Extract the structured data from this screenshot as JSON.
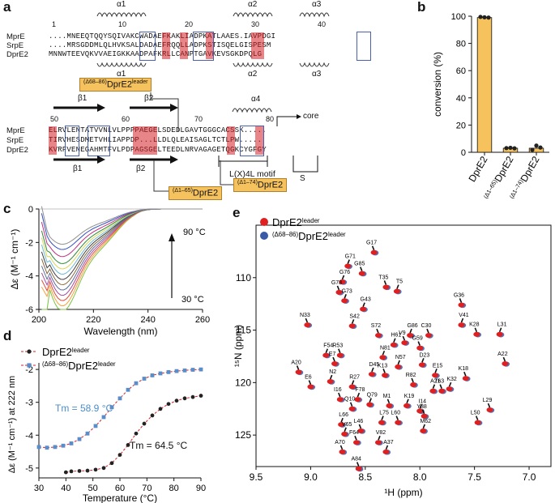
{
  "panels": {
    "a": "a",
    "b": "b",
    "c": "c",
    "d": "d",
    "e": "e"
  },
  "panel_a": {
    "ruler_top": [
      "1",
      "10",
      "20",
      "30",
      "40"
    ],
    "helices_top": [
      "α1",
      "α2",
      "α3"
    ],
    "helices_mid": [
      "α1",
      "α2",
      "α3"
    ],
    "rows_top": [
      {
        "name": "MprE",
        "seq": "....MNEEQTQQYSQIVAKCWADAEFKAKLIADPKATLAAES.IAVPDGI"
      },
      {
        "name": "SrpE",
        "seq": "....MRSGDDMLQLHVKSALDADAEFRQQLLADPKSTISQELGISPESM"
      },
      {
        "name": "DprE2",
        "seq": "MNNWTEEVQKVVAEIGKKAADPAFKRLLCANPTGAVKEVSGKDPQLG"
      }
    ],
    "ruler_bottom": [
      "50",
      "60",
      "70",
      "80"
    ],
    "alpha4": "α4",
    "core_label": "core",
    "rows_bottom": [
      {
        "name": "MprE",
        "seq": "ELRVLENTATVVNLVLPPPPAEGELSDEDLGAVTGGGCACSSK....."
      },
      {
        "name": "SrpE",
        "seq": "TIRVHESDMETVHLIAPPDP...LLDLQLEAISAGLTCTLPW....."
      },
      {
        "name": "DprE2",
        "seq": "KVRFVENEGAHMTFVLPDPAGSGELTEEDLNRVAGAGETQGKCYGFGY"
      }
    ],
    "beta_top": [
      "β1",
      "β2"
    ],
    "beta_bottom": [
      "β1",
      "β2"
    ],
    "motif": "L(X)4L motif",
    "bridge": "S",
    "tag_leader_sup": "(Δ68–86)",
    "tag_leader_main": "DprE2",
    "tag_leader_suffix": "leader",
    "tag_d65_sup": "(Δ1–65)",
    "tag_d65_main": "DprE2",
    "tag_d74_sup": "(Δ1–74)",
    "tag_d74_main": "DprE2"
  },
  "chart_data": [
    {
      "panel": "b",
      "type": "bar",
      "ylabel": "conversion (%)",
      "yticks": [
        "0",
        "20",
        "40",
        "60",
        "80",
        "100"
      ],
      "ylim": [
        0,
        100
      ],
      "categories": [
        "DprE2",
        "(Δ1–65)DprE2",
        "(Δ1–74)DprE2"
      ],
      "cat_sup": [
        "",
        "(Δ1–65)",
        "(Δ1–74)"
      ],
      "cat_main": [
        "DprE2",
        "DprE2",
        "DprE2"
      ],
      "values": [
        99,
        3,
        3
      ],
      "replicates": [
        [
          99.5,
          99.2,
          99.0
        ],
        [
          3.1,
          3.3,
          2.9
        ],
        [
          1.8,
          4.9,
          3.5
        ]
      ],
      "color": "#f6c25e"
    },
    {
      "panel": "c",
      "type": "line",
      "xlabel": "Wavelength (nm)",
      "ylabel": "Δε (M⁻¹ cm⁻¹)",
      "xlim": [
        200,
        260
      ],
      "ylim": [
        -6,
        0
      ],
      "xticks": [
        "200",
        "220",
        "240",
        "260"
      ],
      "yticks": [
        "0",
        "-2",
        "-4",
        "-6"
      ],
      "annotation_hot": "90 °C",
      "annotation_cold": "30 °C",
      "temperatures": [
        30,
        35,
        40,
        45,
        50,
        55,
        60,
        65,
        70,
        75,
        80,
        85,
        90
      ],
      "colors": [
        "#7cc242",
        "#f6a13c",
        "#e24a3b",
        "#a84ba0",
        "#5b6d9e",
        "#8a6a3e",
        "#404040",
        "#6bb8d9",
        "#d8d856",
        "#2f8a3a",
        "#c03080",
        "#3050c0",
        "#909090"
      ],
      "min_at_208": [
        -5.8,
        -5.5,
        -5.2,
        -4.9,
        -4.6,
        -4.3,
        -4.0,
        -3.7,
        -3.4,
        -3.1,
        -2.7,
        -2.3,
        -2.0
      ]
    },
    {
      "panel": "d",
      "type": "line",
      "xlabel": "Temperature (°C)",
      "ylabel": "Δε (M⁻¹ cm⁻¹) at 222 nm",
      "xlim": [
        30,
        90
      ],
      "ylim": [
        -5.3,
        -1.8
      ],
      "xticks": [
        "30",
        "40",
        "50",
        "60",
        "70",
        "80",
        "90"
      ],
      "yticks": [
        "-2",
        "-3",
        "-4",
        "-5"
      ],
      "series": [
        {
          "name": "DprE2leader",
          "label_main": "DprE2",
          "label_sup": "leader",
          "label_pre": "",
          "color": "#222222",
          "x": [
            40,
            42,
            45,
            48,
            51,
            54,
            57,
            60,
            63,
            66,
            69,
            72,
            75,
            78,
            81,
            84,
            87,
            90
          ],
          "y": [
            -5.13,
            -5.1,
            -5.09,
            -5.08,
            -5.05,
            -5.0,
            -4.85,
            -4.6,
            -4.3,
            -3.95,
            -3.65,
            -3.4,
            -3.2,
            -3.05,
            -2.95,
            -2.88,
            -2.84,
            -2.8
          ]
        },
        {
          "name": "(Δ68–86)DprE2leader",
          "label_main": "DprE2",
          "label_sup": "leader",
          "label_pre": "(Δ68–86)",
          "color": "#5b8ec9",
          "x": [
            30,
            33,
            36,
            39,
            42,
            45,
            48,
            51,
            54,
            57,
            60,
            63,
            66,
            69,
            72,
            75,
            78,
            81,
            84,
            87,
            90
          ],
          "y": [
            -4.36,
            -4.38,
            -4.36,
            -4.32,
            -4.25,
            -4.12,
            -3.95,
            -3.72,
            -3.45,
            -3.15,
            -2.88,
            -2.62,
            -2.42,
            -2.28,
            -2.18,
            -2.12,
            -2.08,
            -2.05,
            -2.03,
            -2.01,
            -2.0
          ]
        }
      ],
      "tm_blue": "Tm = 58.9 °C",
      "tm_black": "Tm = 64.5 °C"
    },
    {
      "panel": "e",
      "type": "scatter",
      "xlabel": "¹H (ppm)",
      "ylabel": "¹⁵N (ppm)",
      "xlim": [
        9.5,
        6.8
      ],
      "ylim": [
        128,
        105
      ],
      "xticks": [
        "9.5",
        "9.0",
        "8.5",
        "8.0",
        "7.5",
        "7.0"
      ],
      "yticks": [
        "110",
        "115",
        "120",
        "125"
      ],
      "legend": [
        {
          "pre": "",
          "main": "DprE2",
          "sup": "leader",
          "color": "#e02020"
        },
        {
          "pre": "(Δ68–86)",
          "main": "DprE2",
          "sup": "leader",
          "color": "#3a5aa8"
        }
      ],
      "peaks": [
        {
          "label": "G17",
          "h": 8.42,
          "n": 107.6
        },
        {
          "label": "G71",
          "h": 8.66,
          "n": 108.9
        },
        {
          "label": "G85",
          "h": 8.53,
          "n": 109.6
        },
        {
          "label": "G76",
          "h": 8.71,
          "n": 110.4
        },
        {
          "label": "T35",
          "h": 8.31,
          "n": 110.9
        },
        {
          "label": "T5",
          "h": 8.21,
          "n": 111.3
        },
        {
          "label": "G78",
          "h": 8.74,
          "n": 111.4
        },
        {
          "label": "G73",
          "h": 8.69,
          "n": 112.2
        },
        {
          "label": "G36",
          "h": 7.62,
          "n": 112.6
        },
        {
          "label": "G43",
          "h": 8.52,
          "n": 113.0
        },
        {
          "label": "N33",
          "h": 9.03,
          "n": 114.5
        },
        {
          "label": "S42",
          "h": 8.62,
          "n": 114.6
        },
        {
          "label": "S72",
          "h": 8.38,
          "n": 115.5
        },
        {
          "label": "G86",
          "h": 8.09,
          "n": 115.5
        },
        {
          "label": "C30",
          "h": 7.92,
          "n": 115.5
        },
        {
          "label": "V41",
          "h": 7.62,
          "n": 114.5
        },
        {
          "label": "K28",
          "h": 7.48,
          "n": 115.4
        },
        {
          "label": "L31",
          "h": 7.27,
          "n": 115.4
        },
        {
          "label": "V9",
          "h": 8.14,
          "n": 116.2
        },
        {
          "label": "H61",
          "h": 8.24,
          "n": 116.4
        },
        {
          "label": "G59",
          "h": 8.0,
          "n": 116.7
        },
        {
          "label": "F54",
          "h": 8.86,
          "n": 117.4
        },
        {
          "label": "R53",
          "h": 8.73,
          "n": 117.4
        },
        {
          "label": "N81",
          "h": 8.34,
          "n": 117.6
        },
        {
          "label": "E7",
          "h": 8.78,
          "n": 118.2
        },
        {
          "label": "D23",
          "h": 7.98,
          "n": 118.3
        },
        {
          "label": "A22",
          "h": 7.22,
          "n": 118.2
        },
        {
          "label": "N57",
          "h": 8.2,
          "n": 118.5
        },
        {
          "label": "A20",
          "h": 9.11,
          "n": 119.0
        },
        {
          "label": "D45",
          "h": 8.44,
          "n": 119.2
        },
        {
          "label": "K13",
          "h": 8.32,
          "n": 119.3
        },
        {
          "label": "E15",
          "h": 7.86,
          "n": 119.3
        },
        {
          "label": "K18",
          "h": 7.58,
          "n": 119.6
        },
        {
          "label": "N2",
          "h": 8.82,
          "n": 119.9
        },
        {
          "label": "E6",
          "h": 9.0,
          "n": 120.4
        },
        {
          "label": "R27",
          "h": 8.62,
          "n": 120.4
        },
        {
          "label": "R82",
          "h": 8.06,
          "n": 120.2
        },
        {
          "label": "A21",
          "h": 7.88,
          "n": 120.8
        },
        {
          "label": "T63",
          "h": 7.8,
          "n": 120.8
        },
        {
          "label": "K32",
          "h": 7.73,
          "n": 120.6
        },
        {
          "label": "I16",
          "h": 8.73,
          "n": 121.6
        },
        {
          "label": "F78",
          "h": 8.57,
          "n": 121.6
        },
        {
          "label": "M1",
          "h": 8.28,
          "n": 122.2
        },
        {
          "label": "K19",
          "h": 8.12,
          "n": 122.2
        },
        {
          "label": "Q10",
          "h": 8.62,
          "n": 122.5
        },
        {
          "label": "Q79",
          "h": 8.46,
          "n": 122.1
        },
        {
          "label": "L29",
          "h": 7.36,
          "n": 122.6
        },
        {
          "label": "I14",
          "h": 8.0,
          "n": 122.7
        },
        {
          "label": "Y38",
          "h": 7.96,
          "n": 123.2
        },
        {
          "label": "L75",
          "h": 8.35,
          "n": 123.8
        },
        {
          "label": "L60",
          "h": 8.2,
          "n": 123.8
        },
        {
          "label": "L66",
          "h": 8.72,
          "n": 124.0
        },
        {
          "label": "L50",
          "h": 7.47,
          "n": 123.8
        },
        {
          "label": "M62",
          "h": 7.97,
          "n": 124.6
        },
        {
          "label": "L46",
          "h": 8.54,
          "n": 124.6
        },
        {
          "label": "V65",
          "h": 8.69,
          "n": 124.9
        },
        {
          "label": "F64",
          "h": 8.58,
          "n": 125.7
        },
        {
          "label": "V82",
          "h": 8.38,
          "n": 125.7
        },
        {
          "label": "A70",
          "h": 8.71,
          "n": 126.6
        },
        {
          "label": "A37",
          "h": 8.31,
          "n": 126.6
        },
        {
          "label": "A84",
          "h": 8.56,
          "n": 128.2
        }
      ]
    }
  ]
}
